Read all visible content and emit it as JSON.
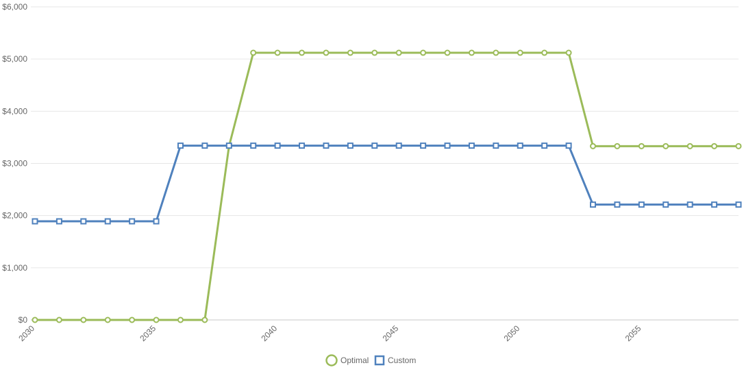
{
  "chart_data": {
    "type": "line",
    "x": [
      2030,
      2031,
      2032,
      2033,
      2034,
      2035,
      2036,
      2037,
      2038,
      2039,
      2040,
      2041,
      2042,
      2043,
      2044,
      2045,
      2046,
      2047,
      2048,
      2049,
      2050,
      2051,
      2052,
      2053,
      2054,
      2055,
      2056,
      2057,
      2058,
      2059
    ],
    "series": [
      {
        "name": "Optimal",
        "color": "#9bbb59",
        "marker": "circle",
        "values": [
          0,
          0,
          0,
          0,
          0,
          0,
          0,
          0,
          3330,
          5120,
          5120,
          5120,
          5120,
          5120,
          5120,
          5120,
          5120,
          5120,
          5120,
          5120,
          5120,
          5120,
          5120,
          3330,
          3330,
          3330,
          3330,
          3330,
          3330,
          3330
        ]
      },
      {
        "name": "Custom",
        "color": "#4f81bd",
        "marker": "square",
        "values": [
          1890,
          1890,
          1890,
          1890,
          1890,
          1890,
          3340,
          3340,
          3340,
          3340,
          3340,
          3340,
          3340,
          3340,
          3340,
          3340,
          3340,
          3340,
          3340,
          3340,
          3340,
          3340,
          3340,
          2210,
          2210,
          2210,
          2210,
          2210,
          2210,
          2210
        ]
      }
    ],
    "ylim": [
      0,
      6000
    ],
    "yticks": [
      0,
      1000,
      2000,
      3000,
      4000,
      5000,
      6000
    ],
    "ytick_labels": [
      "$0",
      "$1,000",
      "$2,000",
      "$3,000",
      "$4,000",
      "$5,000",
      "$6,000"
    ],
    "xticks": [
      2030,
      2035,
      2040,
      2045,
      2050,
      2055
    ],
    "xtick_labels": [
      "2030",
      "2035",
      "2040",
      "2045",
      "2050",
      "2055"
    ],
    "grid": true,
    "legend_position": "bottom",
    "title": "",
    "xlabel": "",
    "ylabel": ""
  }
}
